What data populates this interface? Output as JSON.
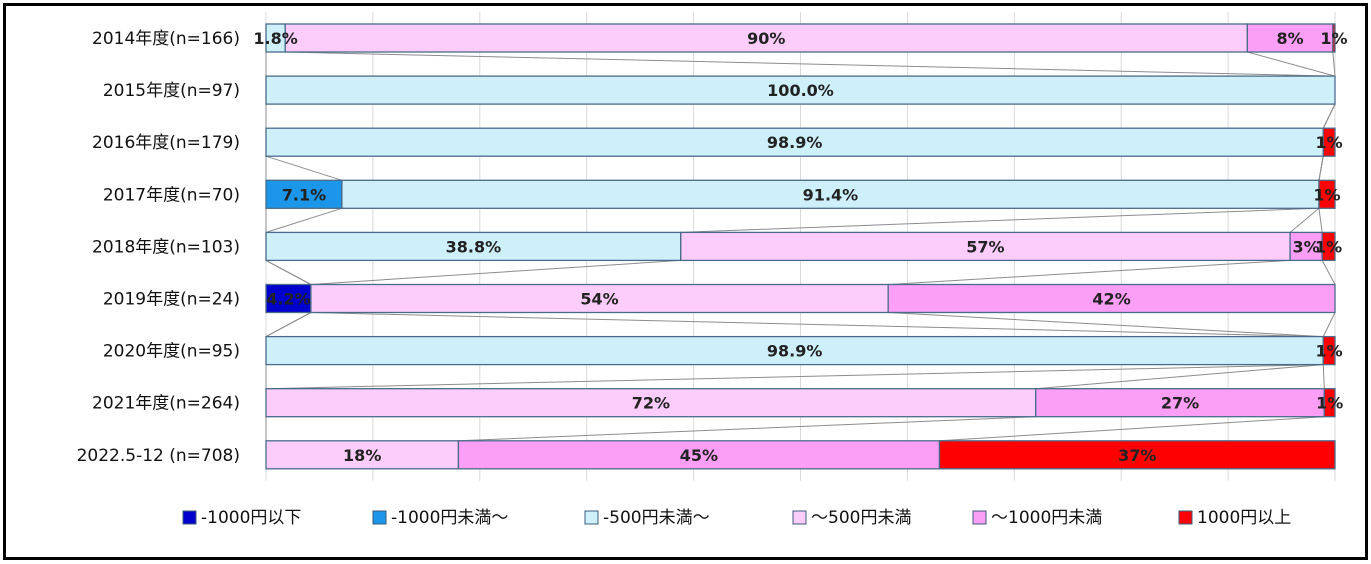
{
  "chart_data": {
    "type": "bar",
    "orientation": "horizontal",
    "stacked": "percent",
    "grid": true,
    "legend_position": "bottom",
    "categories": [
      "2014年度(n=166)",
      "2015年度(n=97)",
      "2016年度(n=179)",
      "2017年度(n=70)",
      "2018年度(n=103)",
      "2019年度(n=24)",
      "2020年度(n=95)",
      "2021年度(n=264)",
      "2022.5-12 (n=708)"
    ],
    "series": [
      {
        "name": "-1000円以下",
        "color": "#0000cc",
        "values": [
          0,
          0,
          0,
          0,
          0,
          4.2,
          0,
          0,
          0
        ],
        "labels": [
          "",
          "",
          "",
          "",
          "",
          "4.2%",
          "",
          "",
          ""
        ]
      },
      {
        "name": "-1000円未満～",
        "color": "#1b96e8",
        "values": [
          0,
          0,
          0,
          7.1,
          0,
          0,
          0,
          0,
          0
        ],
        "labels": [
          "",
          "",
          "",
          "7.1%",
          "",
          "",
          "",
          "",
          ""
        ]
      },
      {
        "name": "-500円未満～",
        "color": "#cdf0fb",
        "values": [
          1.8,
          100.0,
          98.9,
          91.4,
          38.8,
          0,
          98.9,
          0,
          0
        ],
        "labels": [
          "1.8%",
          "100.0%",
          "98.9%",
          "91.4%",
          "38.8%",
          "",
          "98.9%",
          "",
          ""
        ]
      },
      {
        "name": "～500円未満",
        "color": "#fccdfb",
        "values": [
          90,
          0,
          0,
          0,
          57,
          54,
          0,
          72,
          18
        ],
        "labels": [
          "90%",
          "",
          "",
          "",
          "57%",
          "54%",
          "",
          "72%",
          "18%"
        ]
      },
      {
        "name": "～1000円未満",
        "color": "#fa9ef6",
        "values": [
          8,
          0,
          0,
          0,
          3,
          42,
          0,
          27,
          45
        ],
        "labels": [
          "8%",
          "",
          "",
          "",
          "3%",
          "42%",
          "",
          "27%",
          "45%"
        ]
      },
      {
        "name": "1000円以上",
        "color": "#ff0000",
        "values": [
          1,
          0,
          1.1,
          1.5,
          1.2,
          0,
          1.1,
          1,
          37
        ],
        "labels": [
          "1%",
          "",
          "1%",
          "1%",
          "1%",
          "",
          "1%",
          "1%",
          "37%"
        ]
      }
    ],
    "xlim": [
      0,
      100
    ]
  }
}
